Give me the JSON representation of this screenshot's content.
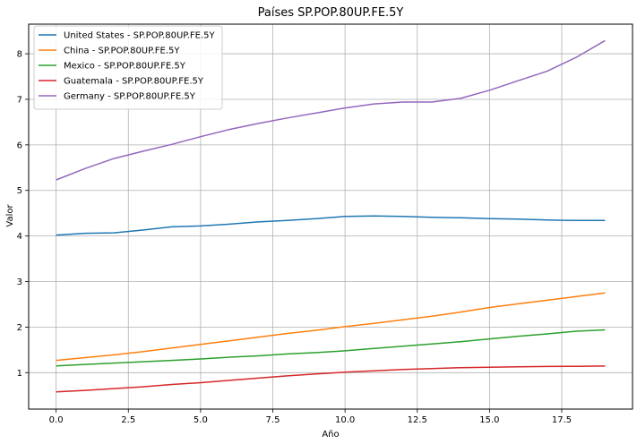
{
  "chart_data": {
    "type": "line",
    "title": "Países SP.POP.80UP.FE.5Y",
    "xlabel": "Año",
    "ylabel": "Valor",
    "xlim": [
      -0.95,
      19.95
    ],
    "ylim": [
      0.2,
      8.65
    ],
    "x_ticks": [
      0.0,
      2.5,
      5.0,
      7.5,
      10.0,
      12.5,
      15.0,
      17.5
    ],
    "x_tick_labels": [
      "0.0",
      "2.5",
      "5.0",
      "7.5",
      "10.0",
      "12.5",
      "15.0",
      "17.5"
    ],
    "y_ticks": [
      1,
      2,
      3,
      4,
      5,
      6,
      7,
      8
    ],
    "y_tick_labels": [
      "1",
      "2",
      "3",
      "4",
      "5",
      "6",
      "7",
      "8"
    ],
    "grid": true,
    "legend_position": "top-left",
    "x": [
      0,
      1,
      2,
      3,
      4,
      5,
      6,
      7,
      8,
      9,
      10,
      11,
      12,
      13,
      14,
      15,
      16,
      17,
      18,
      19
    ],
    "series": [
      {
        "name": "United States - SP.POP.80UP.FE.5Y",
        "color": "#1f77b4",
        "values": [
          4.02,
          4.06,
          4.07,
          4.13,
          4.2,
          4.22,
          4.26,
          4.31,
          4.34,
          4.38,
          4.43,
          4.44,
          4.43,
          4.41,
          4.4,
          4.38,
          4.37,
          4.35,
          4.34,
          4.34
        ]
      },
      {
        "name": "China - SP.POP.80UP.FE.5Y",
        "color": "#ff7f0e",
        "values": [
          1.27,
          1.33,
          1.39,
          1.46,
          1.54,
          1.62,
          1.7,
          1.78,
          1.86,
          1.93,
          2.01,
          2.08,
          2.16,
          2.24,
          2.33,
          2.43,
          2.51,
          2.59,
          2.67,
          2.75
        ]
      },
      {
        "name": "Mexico - SP.POP.80UP.FE.5Y",
        "color": "#2ca02c",
        "values": [
          1.15,
          1.18,
          1.21,
          1.24,
          1.27,
          1.3,
          1.34,
          1.37,
          1.41,
          1.44,
          1.48,
          1.53,
          1.58,
          1.63,
          1.68,
          1.74,
          1.8,
          1.85,
          1.91,
          1.94
        ]
      },
      {
        "name": "Guatemala - SP.POP.80UP.FE.5Y",
        "color": "#d62728",
        "values": [
          0.58,
          0.61,
          0.65,
          0.69,
          0.74,
          0.78,
          0.83,
          0.88,
          0.93,
          0.97,
          1.01,
          1.04,
          1.07,
          1.09,
          1.11,
          1.12,
          1.13,
          1.135,
          1.14,
          1.145
        ]
      },
      {
        "name": "Germany - SP.POP.80UP.FE.5Y",
        "color": "#9467bd",
        "values": [
          5.23,
          5.48,
          5.7,
          5.86,
          6.01,
          6.18,
          6.34,
          6.47,
          6.59,
          6.7,
          6.81,
          6.9,
          6.94,
          6.94,
          7.02,
          7.2,
          7.41,
          7.62,
          7.92,
          8.29
        ]
      }
    ]
  }
}
